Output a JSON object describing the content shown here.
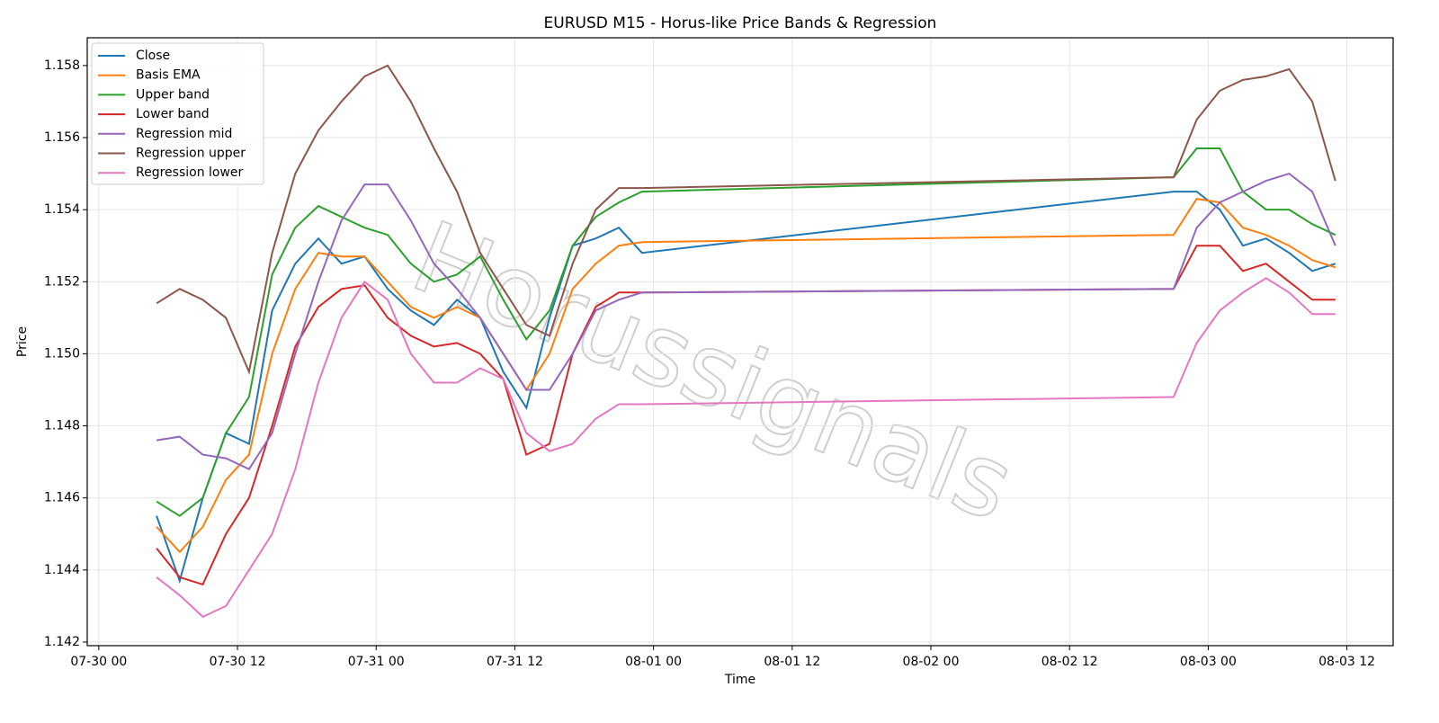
{
  "chart_data": {
    "type": "line",
    "title": "EURUSD M15 - Horus-like Price Bands & Regression",
    "x_label": "Time",
    "y_label": "Price",
    "watermark": "Horussignals",
    "x": [
      "07-30 05",
      "07-30 07",
      "07-30 09",
      "07-30 11",
      "07-30 13",
      "07-30 15",
      "07-30 17",
      "07-30 19",
      "07-30 21",
      "07-30 23",
      "07-31 01",
      "07-31 03",
      "07-31 05",
      "07-31 07",
      "07-31 09",
      "07-31 11",
      "07-31 13",
      "07-31 15",
      "07-31 17",
      "07-31 19",
      "07-31 21",
      "07-31 23",
      "08-02 21",
      "08-02 23",
      "08-03 01",
      "08-03 03",
      "08-03 05",
      "08-03 07",
      "08-03 09",
      "08-03 11"
    ],
    "series": [
      {
        "name": "Close",
        "color": "#1f77b4",
        "values": [
          1.1455,
          1.1437,
          1.146,
          1.1478,
          1.1475,
          1.1512,
          1.1525,
          1.1532,
          1.1525,
          1.1527,
          1.1518,
          1.1512,
          1.1508,
          1.1515,
          1.151,
          1.1495,
          1.1485,
          1.151,
          1.153,
          1.1532,
          1.1535,
          1.1528,
          1.1545,
          1.1545,
          1.154,
          1.153,
          1.1532,
          1.1528,
          1.1523,
          1.1525
        ]
      },
      {
        "name": "Basis EMA",
        "color": "#ff7f0e",
        "values": [
          1.1452,
          1.1445,
          1.1452,
          1.1465,
          1.1472,
          1.15,
          1.1518,
          1.1528,
          1.1527,
          1.1527,
          1.152,
          1.1513,
          1.151,
          1.1513,
          1.151,
          1.15,
          1.149,
          1.15,
          1.1518,
          1.1525,
          1.153,
          1.1531,
          1.1533,
          1.1543,
          1.1542,
          1.1535,
          1.1533,
          1.153,
          1.1526,
          1.1524
        ]
      },
      {
        "name": "Upper band",
        "color": "#2ca02c",
        "values": [
          1.1459,
          1.1455,
          1.146,
          1.1478,
          1.1488,
          1.1522,
          1.1535,
          1.1541,
          1.1538,
          1.1535,
          1.1533,
          1.1525,
          1.152,
          1.1522,
          1.1527,
          1.1515,
          1.1504,
          1.1512,
          1.153,
          1.1538,
          1.1542,
          1.1545,
          1.1549,
          1.1557,
          1.1557,
          1.1545,
          1.154,
          1.154,
          1.1536,
          1.1533
        ]
      },
      {
        "name": "Lower band",
        "color": "#d62728",
        "values": [
          1.1446,
          1.1438,
          1.1436,
          1.145,
          1.146,
          1.148,
          1.1502,
          1.1513,
          1.1518,
          1.1519,
          1.151,
          1.1505,
          1.1502,
          1.1503,
          1.15,
          1.1493,
          1.1472,
          1.1475,
          1.15,
          1.1513,
          1.1517,
          1.1517,
          1.1518,
          1.153,
          1.153,
          1.1523,
          1.1525,
          1.152,
          1.1515,
          1.1515
        ]
      },
      {
        "name": "Regression mid",
        "color": "#9467bd",
        "values": [
          1.1476,
          1.1477,
          1.1472,
          1.1471,
          1.1468,
          1.1478,
          1.15,
          1.152,
          1.1537,
          1.1547,
          1.1547,
          1.1537,
          1.1525,
          1.1518,
          1.151,
          1.15,
          1.149,
          1.149,
          1.15,
          1.1512,
          1.1515,
          1.1517,
          1.1518,
          1.1535,
          1.1542,
          1.1545,
          1.1548,
          1.155,
          1.1545,
          1.153
        ]
      },
      {
        "name": "Regression upper",
        "color": "#8c564b",
        "values": [
          1.1514,
          1.1518,
          1.1515,
          1.151,
          1.1495,
          1.1528,
          1.155,
          1.1562,
          1.157,
          1.1577,
          1.158,
          1.157,
          1.1557,
          1.1545,
          1.1528,
          1.1518,
          1.1508,
          1.1505,
          1.1525,
          1.154,
          1.1546,
          1.1546,
          1.1549,
          1.1565,
          1.1573,
          1.1576,
          1.1577,
          1.1579,
          1.157,
          1.1548
        ]
      },
      {
        "name": "Regression lower",
        "color": "#e377c2",
        "values": [
          1.1438,
          1.1433,
          1.1427,
          1.143,
          1.144,
          1.145,
          1.1468,
          1.1492,
          1.151,
          1.152,
          1.1515,
          1.15,
          1.1492,
          1.1492,
          1.1496,
          1.1493,
          1.1478,
          1.1473,
          1.1475,
          1.1482,
          1.1486,
          1.1486,
          1.1488,
          1.1503,
          1.1512,
          1.1517,
          1.1521,
          1.1517,
          1.1511,
          1.1511
        ]
      }
    ],
    "xlim": [
      "07-29 23",
      "08-03 16"
    ],
    "xticks": [
      "07-30 00",
      "07-30 12",
      "07-31 00",
      "07-31 12",
      "08-01 00",
      "08-01 12",
      "08-02 00",
      "08-02 12",
      "08-03 00",
      "08-03 12"
    ],
    "ylim": [
      1.1419,
      1.15877
    ],
    "yticks": [
      1.142,
      1.144,
      1.146,
      1.148,
      {
        "value": 1.15,
        "label": "1.150"
      },
      1.152,
      1.154,
      1.156,
      1.158
    ],
    "grid": true,
    "legend": "upper left"
  }
}
